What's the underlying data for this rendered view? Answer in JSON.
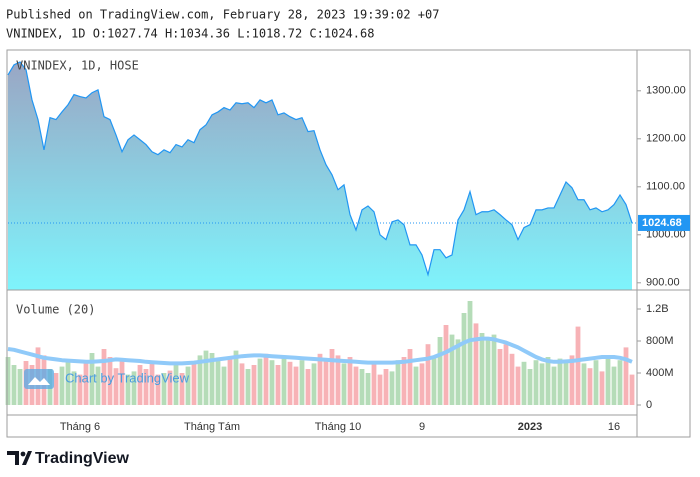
{
  "header": {
    "published": "Published on TradingView.com, February 28, 2023 19:39:02 +07",
    "ohlc": "VNINDEX, 1D O:1027.74 H:1034.36 L:1018.72 C:1024.68"
  },
  "watermark": "Chart by TradingView",
  "footer": {
    "brand": "TradingView"
  },
  "chart_data": [
    {
      "type": "area",
      "title": "VNINDEX, 1D, HOSE",
      "color": "#2196f3",
      "fill_colors": [
        "#9aa6c4",
        "#7ef4fc"
      ],
      "last_value_line": true,
      "categories": [
        null,
        null,
        null,
        null,
        null,
        null,
        null,
        null,
        null,
        null,
        null,
        null,
        "Tháng 6",
        null,
        null,
        null,
        null,
        null,
        null,
        null,
        null,
        null,
        null,
        null,
        null,
        null,
        null,
        null,
        null,
        null,
        null,
        null,
        null,
        null,
        "Tháng Tám",
        null,
        null,
        null,
        null,
        null,
        null,
        null,
        null,
        null,
        null,
        null,
        null,
        null,
        null,
        null,
        null,
        null,
        null,
        null,
        null,
        "Tháng 10",
        null,
        null,
        null,
        null,
        null,
        null,
        null,
        null,
        null,
        null,
        null,
        null,
        null,
        "9",
        null,
        null,
        null,
        null,
        null,
        null,
        null,
        null,
        null,
        null,
        null,
        null,
        null,
        null,
        null,
        null,
        null,
        "2023",
        null,
        null,
        null,
        null,
        null,
        null,
        null,
        null,
        null,
        null,
        null,
        null,
        null,
        "16",
        null,
        null,
        null
      ],
      "values": [
        1333,
        1354,
        1360,
        1344,
        1281,
        1240,
        1177,
        1244,
        1240,
        1256,
        1271,
        1292,
        1288,
        1285,
        1296,
        1302,
        1246,
        1240,
        1208,
        1173,
        1198,
        1208,
        1198,
        1188,
        1173,
        1167,
        1177,
        1171,
        1188,
        1183,
        1198,
        1192,
        1219,
        1229,
        1250,
        1256,
        1265,
        1260,
        1275,
        1273,
        1275,
        1265,
        1281,
        1275,
        1281,
        1250,
        1254,
        1246,
        1240,
        1244,
        1215,
        1217,
        1177,
        1146,
        1125,
        1094,
        1104,
        1042,
        1010,
        1052,
        1060,
        1048,
        1000,
        990,
        1027,
        1031,
        1021,
        979,
        979,
        958,
        917,
        969,
        969,
        952,
        958,
        1031,
        1052,
        1090,
        1042,
        1048,
        1048,
        1052,
        1042,
        1031,
        1021,
        990,
        1015,
        1021,
        1052,
        1052,
        1056,
        1056,
        1083,
        1110,
        1098,
        1073,
        1073,
        1052,
        1056,
        1048,
        1052,
        1063,
        1083,
        1063,
        1024.68
      ],
      "ylim": [
        885,
        1385
      ],
      "yticks": [
        {
          "value": 900,
          "label": "900.00"
        },
        {
          "value": 1000,
          "label": "1000.00"
        },
        {
          "value": 1100,
          "label": "1100.00"
        },
        {
          "value": 1200,
          "label": "1200.00"
        },
        {
          "value": 1300,
          "label": "1300.00"
        }
      ]
    },
    {
      "type": "bar",
      "title": "Volume (20)",
      "up_color": "#b5dcb8",
      "down_color": "#f7b2b6",
      "values": [
        600000000.0,
        500000000.0,
        450000000.0,
        550000000.0,
        500000000.0,
        720000000.0,
        620000000.0,
        450000000.0,
        400000000.0,
        480000000.0,
        560000000.0,
        420000000.0,
        380000000.0,
        520000000.0,
        650000000.0,
        480000000.0,
        700000000.0,
        600000000.0,
        460000000.0,
        550000000.0,
        380000000.0,
        420000000.0,
        500000000.0,
        450000000.0,
        550000000.0,
        380000000.0,
        400000000.0,
        430000000.0,
        520000000.0,
        400000000.0,
        480000000.0,
        550000000.0,
        620000000.0,
        680000000.0,
        650000000.0,
        560000000.0,
        480000000.0,
        600000000.0,
        680000000.0,
        520000000.0,
        450000000.0,
        500000000.0,
        580000000.0,
        640000000.0,
        560000000.0,
        500000000.0,
        620000000.0,
        540000000.0,
        480000000.0,
        560000000.0,
        450000000.0,
        520000000.0,
        640000000.0,
        580000000.0,
        700000000.0,
        620000000.0,
        520000000.0,
        600000000.0,
        480000000.0,
        450000000.0,
        400000000.0,
        520000000.0,
        380000000.0,
        450000000.0,
        420000000.0,
        560000000.0,
        600000000.0,
        700000000.0,
        480000000.0,
        520000000.0,
        760000000.0,
        600000000.0,
        850000000.0,
        1000000000.0,
        880000000.0,
        820000000.0,
        1150000000.0,
        1300000000.0,
        1020000000.0,
        900000000.0,
        820000000.0,
        880000000.0,
        700000000.0,
        760000000.0,
        640000000.0,
        480000000.0,
        540000000.0,
        450000000.0,
        560000000.0,
        520000000.0,
        600000000.0,
        480000000.0,
        580000000.0,
        560000000.0,
        620000000.0,
        980000000.0,
        520000000.0,
        460000000.0,
        560000000.0,
        420000000.0,
        600000000.0,
        480000000.0,
        560000000.0,
        720000000.0,
        380000000.0
      ],
      "ma": {
        "color": "#90caf9",
        "values": [
          700000000.0,
          690000000.0,
          670000000.0,
          650000000.0,
          630000000.0,
          610000000.0,
          590000000.0,
          580000000.0,
          570000000.0,
          560000000.0,
          555000000.0,
          550000000.0,
          545000000.0,
          540000000.0,
          540000000.0,
          545000000.0,
          550000000.0,
          560000000.0,
          570000000.0,
          565000000.0,
          560000000.0,
          555000000.0,
          550000000.0,
          540000000.0,
          535000000.0,
          530000000.0,
          525000000.0,
          520000000.0,
          520000000.0,
          520000000.0,
          525000000.0,
          530000000.0,
          540000000.0,
          550000000.0,
          560000000.0,
          570000000.0,
          580000000.0,
          590000000.0,
          600000000.0,
          610000000.0,
          615000000.0,
          620000000.0,
          620000000.0,
          615000000.0,
          610000000.0,
          605000000.0,
          600000000.0,
          595000000.0,
          590000000.0,
          585000000.0,
          580000000.0,
          575000000.0,
          570000000.0,
          565000000.0,
          560000000.0,
          555000000.0,
          550000000.0,
          545000000.0,
          540000000.0,
          535000000.0,
          530000000.0,
          530000000.0,
          530000000.0,
          530000000.0,
          530000000.0,
          535000000.0,
          540000000.0,
          550000000.0,
          560000000.0,
          570000000.0,
          580000000.0,
          600000000.0,
          630000000.0,
          660000000.0,
          700000000.0,
          740000000.0,
          780000000.0,
          810000000.0,
          820000000.0,
          830000000.0,
          830000000.0,
          820000000.0,
          800000000.0,
          780000000.0,
          750000000.0,
          720000000.0,
          680000000.0,
          640000000.0,
          600000000.0,
          570000000.0,
          550000000.0,
          540000000.0,
          540000000.0,
          545000000.0,
          550000000.0,
          560000000.0,
          570000000.0,
          580000000.0,
          590000000.0,
          600000000.0,
          600000000.0,
          600000000.0,
          590000000.0,
          570000000.0,
          540000000.0
        ]
      },
      "ylim": [
        -125000000,
        1437500000
      ],
      "yticks": [
        0,
        {
          "value": 400000000.0,
          "label": "400M"
        },
        {
          "value": 800000000.0,
          "label": "800M"
        },
        {
          "value": 1200000000.0,
          "label": "1.2B"
        }
      ]
    }
  ]
}
